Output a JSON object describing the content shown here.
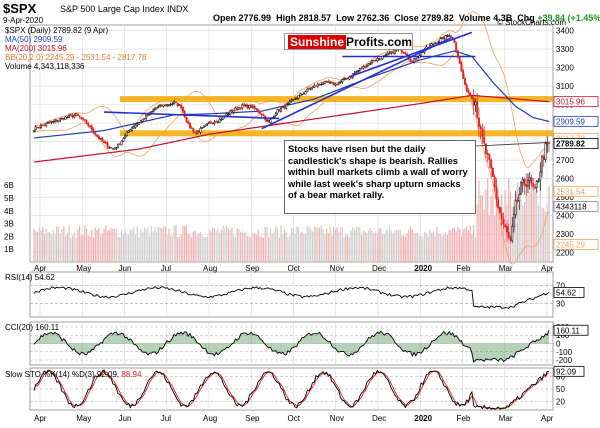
{
  "header": {
    "ticker": "$SPX",
    "name": "S&P 500 Large Cap Index",
    "exchange": "INDX",
    "date": "9-Apr-2020",
    "open_label": "Open",
    "open": "2776.99",
    "high_label": "High",
    "high": "2818.57",
    "low_label": "Low",
    "low": "2762.36",
    "close_label": "Close",
    "close": "2789.82",
    "volume_label": "Volume",
    "volume": "4.3B",
    "chg_label": "Chg",
    "chg": "+39.84 (+1.45%)",
    "site": "© StockCharts.com"
  },
  "legend": {
    "main": "$SPX (Daily) 2789.82 (9 Apr)",
    "ma50": "MA(50) 2909.59",
    "ma200": "MA(200) 3015.96",
    "bb": "BB(20,2.0) 2245.29 - 2531.54 - 2817.78",
    "volume": "Volume 4,343,118,336"
  },
  "logo": {
    "part1": "Sunshine",
    "part2": "Profits.com"
  },
  "annotation": "Stocks have risen but the daily candlestick's shape is bearish. Rallies within bull markets climb a wall of worry while last week's sharp upturn smacks of a bear market rally.",
  "colors": {
    "up": "#000000",
    "down": "#e02020",
    "ma50": "#1f3fb0",
    "ma200": "#c0102a",
    "bb": "#f0a060",
    "trend": "#1f2fd0",
    "support": "#f5a800",
    "grid": "#d8d8d8",
    "rsi": "#000000",
    "cci": "#000000",
    "cci_fill": "#2e7d32",
    "sto_k": "#000000",
    "sto_d": "#e02020"
  },
  "panels": {
    "rsi": {
      "label": "RSI(14) 54.62",
      "ticks": [
        "70",
        "30"
      ],
      "last_tag": "54.62"
    },
    "cci": {
      "label": "CCI(20) 160.11",
      "ticks": [
        "200",
        "100",
        "0",
        "-100",
        "-200"
      ],
      "last_tag": "160.11"
    },
    "sto": {
      "label_prefix": "Slow STO %K(14) %D(3)",
      "k": "92.09",
      "d": "88.94",
      "ticks": [
        "80",
        "50",
        "20"
      ],
      "last_tag": "92.09"
    }
  },
  "chart_data": {
    "type": "candlestick",
    "title": "$SPX S&P 500 Large Cap Index INDX",
    "price_axis": {
      "ticks": [
        3400,
        3300,
        3200,
        3100,
        3000,
        2900,
        2800,
        2700,
        2600,
        2500,
        2400,
        2300,
        2200
      ],
      "range": [
        2150,
        3430
      ]
    },
    "price_tags": [
      {
        "label": "3015.96",
        "value": 3015.96,
        "color": "#c0102a"
      },
      {
        "label": "2909.59",
        "value": 2909.59,
        "color": "#1f3fb0"
      },
      {
        "label": "2817.78",
        "value": 2817.78,
        "color": "#f0a060"
      },
      {
        "label": "2789.82",
        "value": 2789.82,
        "color": "#000000"
      },
      {
        "label": "2531.54",
        "value": 2531.54,
        "color": "#f0a060"
      },
      {
        "label": "2245.29",
        "value": 2245.29,
        "color": "#f0a060"
      }
    ],
    "volume_axis": {
      "ticks": [
        "6B",
        "5B",
        "4B",
        "3B",
        "2B",
        "1B"
      ],
      "range": [
        0,
        6.8
      ],
      "tag": "4343118"
    },
    "x_months": [
      "Apr",
      "May",
      "Jun",
      "Jul",
      "Aug",
      "Sep",
      "Oct",
      "Nov",
      "Dec",
      "2020",
      "Feb",
      "Mar",
      "Apr"
    ],
    "price_anchors": [
      [
        0,
        2870
      ],
      [
        10,
        2905
      ],
      [
        18,
        2930
      ],
      [
        24,
        2945
      ],
      [
        30,
        2900
      ],
      [
        36,
        2830
      ],
      [
        40,
        2790
      ],
      [
        45,
        2760
      ],
      [
        48,
        2780
      ],
      [
        55,
        2870
      ],
      [
        62,
        2920
      ],
      [
        70,
        2985
      ],
      [
        76,
        3000
      ],
      [
        80,
        3010
      ],
      [
        84,
        2990
      ],
      [
        88,
        2890
      ],
      [
        92,
        2850
      ],
      [
        96,
        2870
      ],
      [
        100,
        2900
      ],
      [
        106,
        2920
      ],
      [
        112,
        2960
      ],
      [
        118,
        2990
      ],
      [
        124,
        2990
      ],
      [
        130,
        2950
      ],
      [
        134,
        2900
      ],
      [
        138,
        2960
      ],
      [
        145,
        3000
      ],
      [
        150,
        3040
      ],
      [
        158,
        3090
      ],
      [
        165,
        3120
      ],
      [
        172,
        3110
      ],
      [
        180,
        3150
      ],
      [
        186,
        3190
      ],
      [
        194,
        3240
      ],
      [
        200,
        3260
      ],
      [
        208,
        3300
      ],
      [
        212,
        3280
      ],
      [
        216,
        3230
      ],
      [
        222,
        3290
      ],
      [
        228,
        3330
      ],
      [
        234,
        3360
      ],
      [
        237,
        3380
      ],
      [
        240,
        3340
      ],
      [
        243,
        3220
      ],
      [
        246,
        3100
      ],
      [
        249,
        3050
      ],
      [
        252,
        3020
      ],
      [
        255,
        2840
      ],
      [
        258,
        2740
      ],
      [
        262,
        2600
      ],
      [
        265,
        2450
      ],
      [
        268,
        2350
      ],
      [
        270,
        2300
      ],
      [
        272,
        2250
      ],
      [
        275,
        2450
      ],
      [
        278,
        2550
      ],
      [
        282,
        2600
      ],
      [
        286,
        2520
      ],
      [
        290,
        2700
      ],
      [
        292,
        2760
      ],
      [
        294,
        2790
      ]
    ],
    "ma50_anchors": [
      [
        0,
        2820
      ],
      [
        40,
        2860
      ],
      [
        80,
        2945
      ],
      [
        100,
        2950
      ],
      [
        130,
        2965
      ],
      [
        160,
        3030
      ],
      [
        190,
        3140
      ],
      [
        220,
        3240
      ],
      [
        240,
        3290
      ],
      [
        250,
        3260
      ],
      [
        262,
        3120
      ],
      [
        275,
        2990
      ],
      [
        285,
        2930
      ],
      [
        294,
        2909
      ]
    ],
    "ma200_anchors": [
      [
        0,
        2690
      ],
      [
        60,
        2760
      ],
      [
        100,
        2840
      ],
      [
        140,
        2895
      ],
      [
        180,
        2950
      ],
      [
        220,
        3005
      ],
      [
        250,
        3050
      ],
      [
        270,
        3035
      ],
      [
        294,
        3016
      ]
    ],
    "support_levels": [
      3030,
      2845
    ],
    "resistance_levels": [
      3260
    ],
    "trend_lines": [
      {
        "from": [
          130,
          2870
        ],
        "to": [
          238,
          3360
        ]
      },
      {
        "from": [
          40,
          2960
        ],
        "to": [
          140,
          2925
        ]
      },
      {
        "from": [
          180,
          3150
        ],
        "to": [
          250,
          3390
        ]
      }
    ],
    "rsi": {
      "range": [
        0,
        100
      ],
      "last": 54.62
    },
    "cci": {
      "range": [
        -260,
        260
      ],
      "last": 160.11
    },
    "slow_sto": {
      "range": [
        0,
        100
      ],
      "k_last": 92.09,
      "d_last": 88.94
    }
  }
}
